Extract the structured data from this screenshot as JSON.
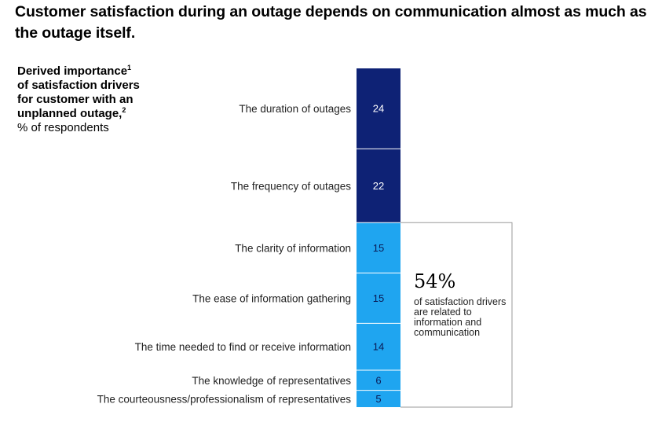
{
  "title": "Customer satisfaction during an outage depends on communication almost as much as the outage itself.",
  "side_label": {
    "line_bold_1": "Derived importance",
    "fn1": "1",
    "line_bold_2": "of satisfaction drivers",
    "line_bold_3": "for customer with an",
    "line_bold_4": "unplanned outage,",
    "fn2": "2",
    "line_normal": "% of respondents"
  },
  "callout": {
    "big": "54%",
    "text": "of satisfaction drivers are related to information and communication"
  },
  "colors": {
    "outage": "#0e2275",
    "information": "#1fa5f0",
    "separator": "#ffffff",
    "value_on_dark": "#ffffff",
    "value_on_light": "#0a1a55",
    "bracket": "#9a9a9a"
  },
  "chart_data": {
    "type": "bar",
    "orientation": "stacked-vertical",
    "categories": [
      "The duration of outages",
      "The frequency of outages",
      "The clarity of information",
      "The ease of information gathering",
      "The time needed to find or receive information",
      "The knowledge of representatives",
      "The courteousness/professionalism of representatives"
    ],
    "values": [
      24,
      22,
      15,
      15,
      14,
      6,
      5
    ],
    "groups": [
      "outage",
      "outage",
      "information",
      "information",
      "information",
      "information",
      "information"
    ],
    "total": 101,
    "xlabel": "",
    "ylabel": ""
  }
}
